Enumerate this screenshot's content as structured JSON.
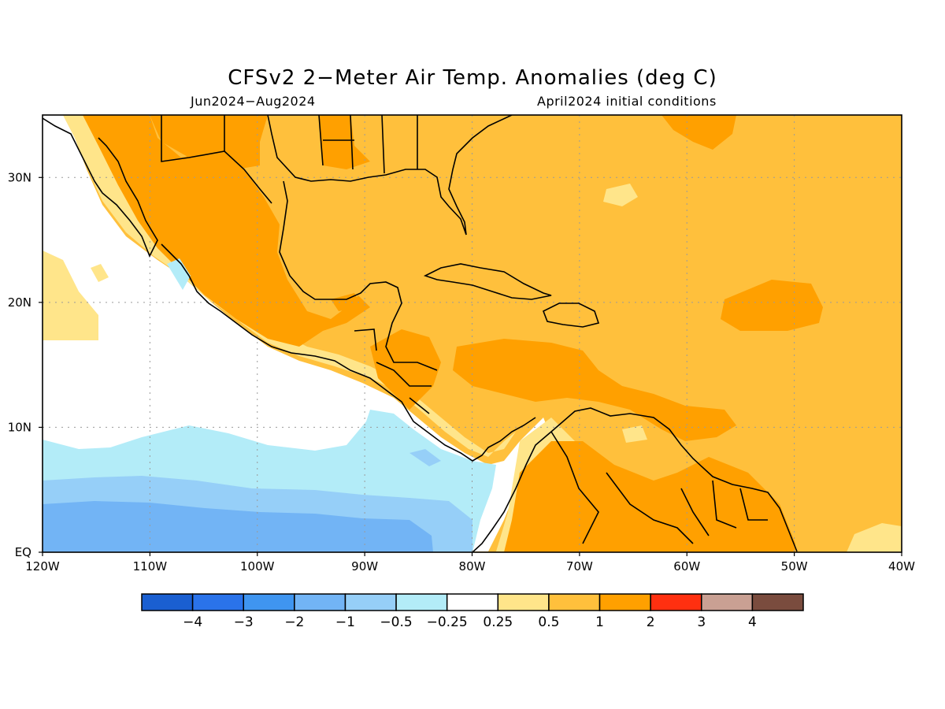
{
  "title": "CFSv2 2−Meter Air Temp. Anomalies (deg C)",
  "subtitle_left": "Jun2024−Aug2024",
  "subtitle_right": "April2024 initial conditions",
  "map": {
    "projection": "lat-lon",
    "lon_range": [
      -120,
      -40
    ],
    "lat_range": [
      0,
      35
    ],
    "grid": "dotted",
    "x_ticks": [
      "120W",
      "110W",
      "100W",
      "90W",
      "80W",
      "70W",
      "60W",
      "50W",
      "40W"
    ],
    "y_ticks": [
      "EQ",
      "10N",
      "20N",
      "30N"
    ]
  },
  "colorbar": {
    "colors": [
      "#1a5fd1",
      "#2a73ea",
      "#3f95f0",
      "#72b4f5",
      "#96cff8",
      "#b3ecf8",
      "#ffffff",
      "#ffe58a",
      "#ffc03c",
      "#ffa000",
      "#ff3010",
      "#c9a093",
      "#7a4c3e"
    ],
    "labels": [
      "−4",
      "−3",
      "−2",
      "−1",
      "−0.5",
      "−0.25",
      "0.25",
      "0.5",
      "1",
      "2",
      "3",
      "4"
    ]
  },
  "palette": {
    "neg_0_25": "#b3ecf8",
    "neg_0_5": "#96cff8",
    "neg_1": "#72b4f5",
    "pos_0_25": "#ffe58a",
    "pos_0_5": "#ffc03c",
    "pos_1": "#ffa000"
  }
}
